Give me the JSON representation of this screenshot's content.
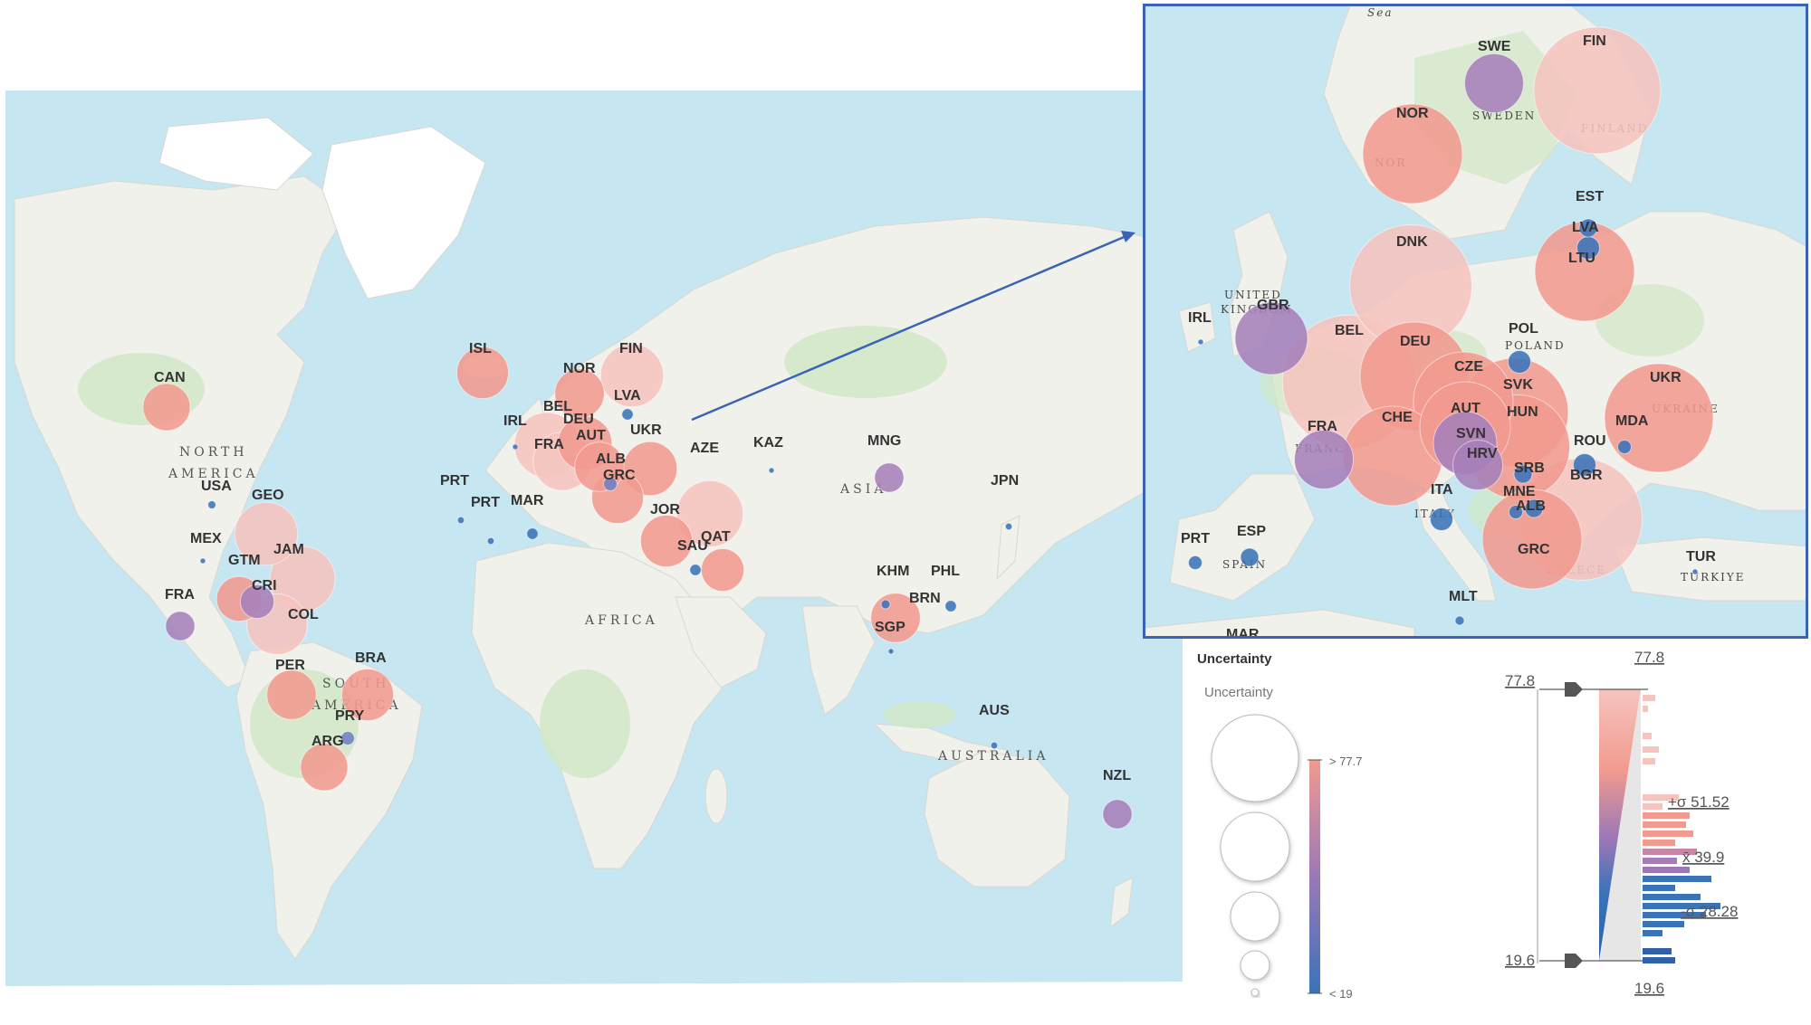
{
  "legend": {
    "title": "Uncertainty",
    "subtitle": "Uncertainty",
    "max_label": "> 77.7",
    "min_label": "< 19"
  },
  "histogram": {
    "top_value": "77.8",
    "bottom_value": "19.6",
    "handle_top": "77.8",
    "handle_bottom": "19.6",
    "plus_sigma": "+σ 51.52",
    "mean": "x̄ 39.9",
    "minus_sigma": "-σ 28.28"
  },
  "colors": {
    "ocean": "#c6e6f2",
    "land": "#f2f2ee",
    "high": "#f19a8f",
    "mid": "#9b78b7",
    "low": "#3a73b8",
    "highest": "#f5c4be",
    "inset_border": "#3a62b5"
  },
  "world_map": {
    "regions": [
      {
        "id": "north-america",
        "text": "NORTH"
      },
      {
        "id": "north-america-2",
        "text": "AMERICA"
      },
      {
        "id": "africa",
        "text": "AFRICA"
      },
      {
        "id": "south-america",
        "text": "SOUTH"
      },
      {
        "id": "south-america-2",
        "text": "AMERICA"
      },
      {
        "id": "asia",
        "text": "ASIA"
      },
      {
        "id": "australia",
        "text": "AUSTRALIA"
      }
    ],
    "points": [
      {
        "code": "CAN",
        "value": 60
      },
      {
        "code": "USA",
        "value": 25
      },
      {
        "code": "GEO",
        "value": 74
      },
      {
        "code": "MEX",
        "value": 22
      },
      {
        "code": "JAM",
        "value": 76
      },
      {
        "code": "GTM",
        "value": 58
      },
      {
        "code": "CRI",
        "value": 48
      },
      {
        "code": "FRA",
        "value": 44
      },
      {
        "code": "COL",
        "value": 72
      },
      {
        "code": "PER",
        "value": 62
      },
      {
        "code": "BRA",
        "value": 64
      },
      {
        "code": "PRY",
        "value": 30
      },
      {
        "code": "ARG",
        "value": 60
      },
      {
        "code": "ISL",
        "value": 64
      },
      {
        "code": "NOR",
        "value": 62
      },
      {
        "code": "FIN",
        "value": 74
      },
      {
        "code": "LVA",
        "value": 28
      },
      {
        "code": "IRL",
        "value": 20
      },
      {
        "code": "BEL",
        "value": 76
      },
      {
        "code": "DEU",
        "value": 66
      },
      {
        "code": "FRA",
        "value": 70
      },
      {
        "code": "AUT",
        "value": 62
      },
      {
        "code": "UKR",
        "value": 66
      },
      {
        "code": "ALB",
        "value": 30
      },
      {
        "code": "GRC",
        "value": 64
      },
      {
        "code": "PRT",
        "value": 24
      },
      {
        "code": "PRT",
        "value": 24
      },
      {
        "code": "MAR",
        "value": 28
      },
      {
        "code": "AZE",
        "value": 77
      },
      {
        "code": "JOR",
        "value": 64
      },
      {
        "code": "SAU",
        "value": 28
      },
      {
        "code": "QAT",
        "value": 56
      },
      {
        "code": "KAZ",
        "value": 20
      },
      {
        "code": "MNG",
        "value": 44
      },
      {
        "code": "JPN",
        "value": 24
      },
      {
        "code": "KHM",
        "value": 26
      },
      {
        "code": "PHL",
        "value": 28
      },
      {
        "code": "BRN",
        "value": 62
      },
      {
        "code": "SGP",
        "value": 22
      },
      {
        "code": "AUS",
        "value": 24
      },
      {
        "code": "NZL",
        "value": 44
      }
    ]
  },
  "inset_map": {
    "top_label": "Sea",
    "regions": [
      {
        "id": "sweden",
        "text": "SWEDEN"
      },
      {
        "id": "finland",
        "text": "FINLAND"
      },
      {
        "id": "nor-partial",
        "text": "NOR"
      },
      {
        "id": "uk",
        "text": "UNITED"
      },
      {
        "id": "uk-2",
        "text": "KINGDOM"
      },
      {
        "id": "poland",
        "text": "POLAND"
      },
      {
        "id": "turkiye",
        "text": "TÜRKIYE"
      },
      {
        "id": "greece",
        "text": "GREECE"
      },
      {
        "id": "france",
        "text": "FRANCE"
      },
      {
        "id": "spain",
        "text": "SPAIN"
      },
      {
        "id": "italy",
        "text": "ITALY"
      },
      {
        "id": "ukraine",
        "text": "UKRAINE"
      }
    ],
    "points": [
      {
        "code": "SWE",
        "value": 44
      },
      {
        "code": "FIN",
        "value": 74
      },
      {
        "code": "NOR",
        "value": 62
      },
      {
        "code": "EST",
        "value": 26
      },
      {
        "code": "LVA",
        "value": 28
      },
      {
        "code": "LTU",
        "value": 62
      },
      {
        "code": "DNK",
        "value": 72
      },
      {
        "code": "GBR",
        "value": 50
      },
      {
        "code": "IRL",
        "value": 20
      },
      {
        "code": "BEL",
        "value": 77
      },
      {
        "code": "DEU",
        "value": 66
      },
      {
        "code": "POL",
        "value": 28
      },
      {
        "code": "CZE",
        "value": 62
      },
      {
        "code": "SVK",
        "value": 66
      },
      {
        "code": "UKR",
        "value": 66
      },
      {
        "code": "FRA",
        "value": 44
      },
      {
        "code": "CHE",
        "value": 62
      },
      {
        "code": "AUT",
        "value": 58
      },
      {
        "code": "SVN",
        "value": 46
      },
      {
        "code": "HUN",
        "value": 64
      },
      {
        "code": "HRV",
        "value": 40
      },
      {
        "code": "MDA",
        "value": 24
      },
      {
        "code": "ROU",
        "value": 28
      },
      {
        "code": "SRB",
        "value": 26
      },
      {
        "code": "BGR",
        "value": 72
      },
      {
        "code": "ITA",
        "value": 28
      },
      {
        "code": "MNE",
        "value": 24
      },
      {
        "code": "ALB",
        "value": 26
      },
      {
        "code": "GRC",
        "value": 62
      },
      {
        "code": "PRT",
        "value": 24
      },
      {
        "code": "ESP",
        "value": 26
      },
      {
        "code": "TUR",
        "value": 20
      },
      {
        "code": "MLT",
        "value": 22
      },
      {
        "code": "MAR",
        "value": 20
      }
    ]
  }
}
